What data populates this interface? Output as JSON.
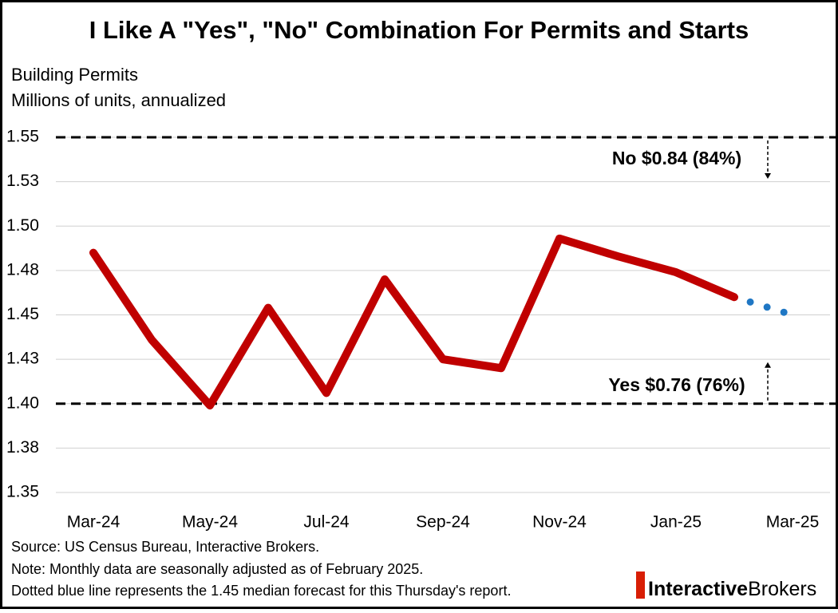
{
  "chart_data": {
    "type": "line",
    "title": "I Like A \"Yes\", \"No\" Combination For Permits and Starts",
    "subtitle": [
      "Building Permits",
      "Millions of units, annualized"
    ],
    "categories": [
      "Mar-24",
      null,
      "May-24",
      null,
      "Jul-24",
      null,
      "Sep-24",
      null,
      "Nov-24",
      null,
      "Jan-25",
      null,
      "Mar-25"
    ],
    "series": [
      {
        "color": "#c00000",
        "style": "solid",
        "values": [
          1.485,
          1.436,
          1.399,
          1.454,
          1.406,
          1.47,
          1.425,
          1.42,
          1.493,
          1.483,
          1.474,
          1.46,
          null
        ]
      },
      {
        "color": "#1f77c4",
        "style": "dotted",
        "values": [
          null,
          null,
          null,
          null,
          null,
          null,
          null,
          null,
          null,
          null,
          null,
          1.46,
          1.45
        ]
      }
    ],
    "ylim": [
      1.35,
      1.55
    ],
    "yticks": [
      1.35,
      {
        "value": 1.375,
        "label": "1.38"
      },
      {
        "value": 1.4,
        "label": "1.40"
      },
      {
        "value": 1.425,
        "label": "1.43"
      },
      1.45,
      {
        "value": 1.475,
        "label": "1.48"
      },
      {
        "value": 1.5,
        "label": "1.50"
      },
      {
        "value": 1.525,
        "label": "1.53"
      },
      1.55
    ],
    "grid": true,
    "reference_lines": [
      {
        "value": 1.55,
        "annotation": "No $0.84 (84%)",
        "color": "#e00000",
        "arrow": "down"
      },
      {
        "value": 1.4,
        "annotation": "Yes $0.76 (76%)",
        "color": "#00a651",
        "arrow": "up"
      }
    ],
    "notes": [
      "Source: US Census Bureau, Interactive Brokers.",
      "Note: Monthly data are seasonally adjusted as of February 2025.",
      "Dotted blue line represents the 1.45 median forecast for this Thursday's report."
    ],
    "logo": [
      "Interactive",
      "Brokers"
    ]
  }
}
